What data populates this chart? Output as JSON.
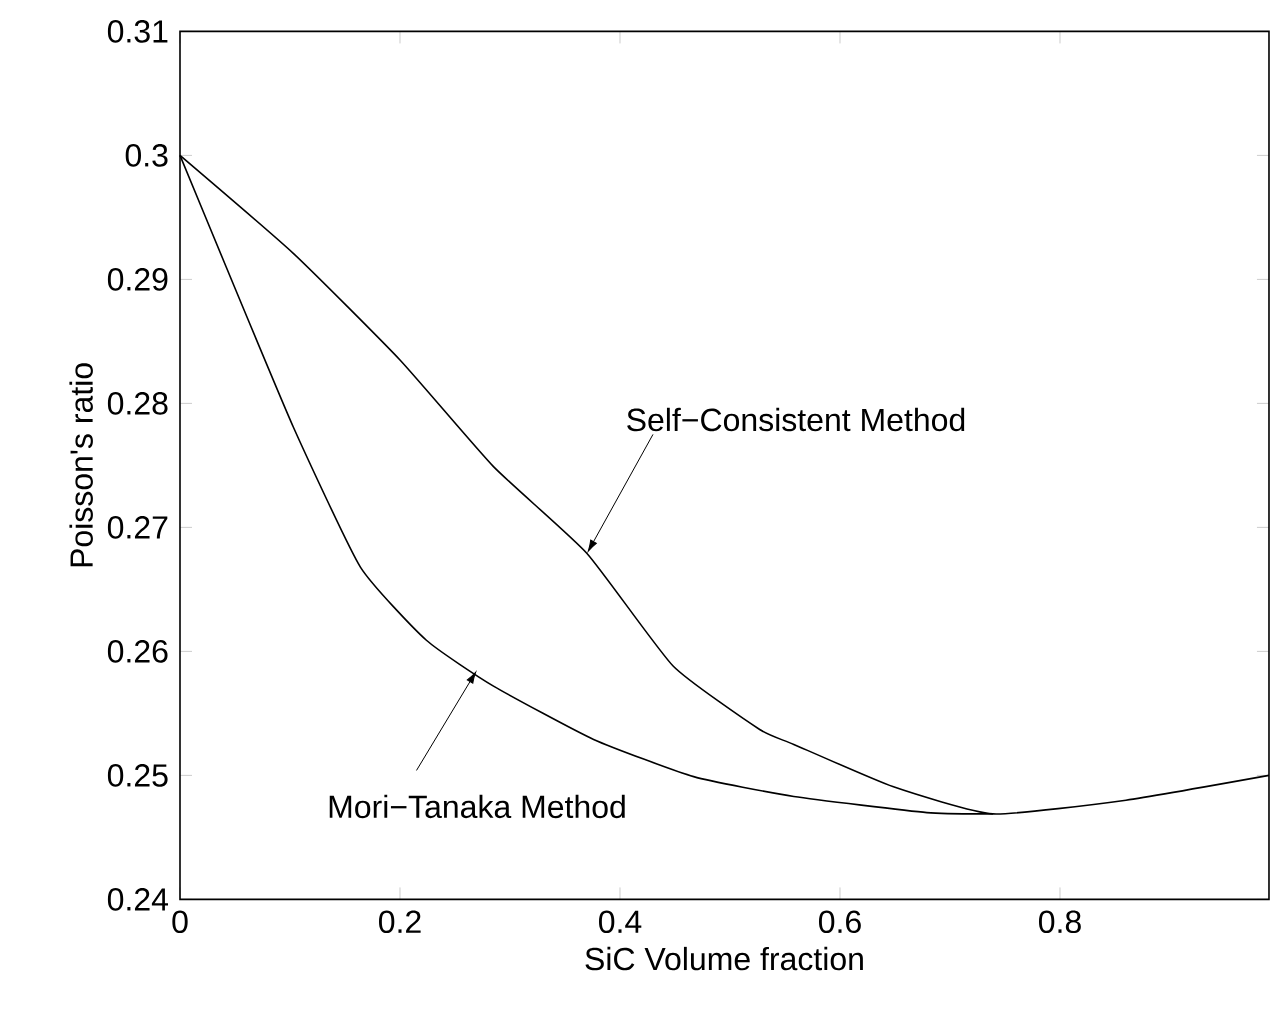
{
  "chart_data": {
    "type": "line",
    "xlabel": "SiC Volume fraction",
    "ylabel": "Poisson's ratio",
    "xlim": [
      0,
      0.99
    ],
    "ylim": [
      0.24,
      0.31
    ],
    "xticks": [
      0,
      0.2,
      0.4,
      0.6,
      0.8
    ],
    "yticks": [
      0.24,
      0.25,
      0.26,
      0.27,
      0.28,
      0.29,
      0.3,
      0.31
    ],
    "line_style": "solid",
    "marker": "none",
    "series": [
      {
        "color": "#000000",
        "x": [
          0,
          0.103,
          0.2,
          0.285,
          0.37,
          0.4485,
          0.527,
          0.558,
          0.648,
          0.739,
          0.86,
          0.99
        ],
        "values": [
          0.3,
          0.2921,
          0.2835,
          0.2749,
          0.2679,
          0.2588,
          0.2537,
          0.2525,
          0.2491,
          0.2469,
          0.248,
          0.25
        ]
      },
      {
        "color": "#000000",
        "x": [
          0,
          0.042,
          0.103,
          0.164,
          0.224,
          0.285,
          0.376,
          0.467,
          0.558,
          0.679,
          0.739
        ],
        "values": [
          0.3,
          0.291,
          0.2781,
          0.2668,
          0.2609,
          0.2572,
          0.2529,
          0.2499,
          0.2483,
          0.247,
          0.2469
        ]
      }
    ],
    "annotations": [
      {
        "text": "Self−Consistent Method",
        "x": 0.37,
        "y": 0.2679
      },
      {
        "text": "Mori−Tanaka Method",
        "x": 0.27,
        "y": 0.2585
      }
    ]
  }
}
